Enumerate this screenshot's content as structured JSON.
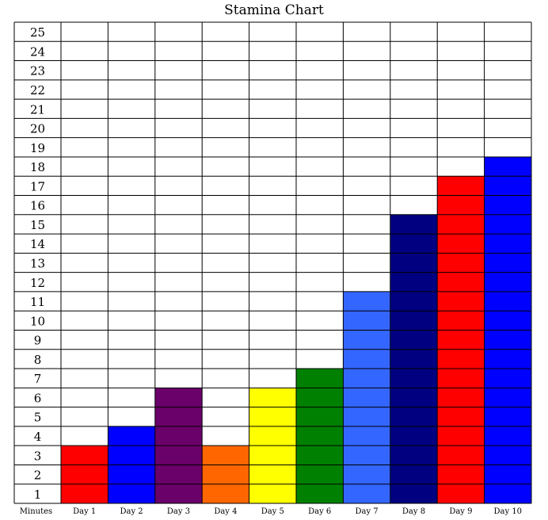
{
  "chart_data": {
    "type": "bar",
    "title": "Stamina Chart",
    "xlabel": "Minutes",
    "ylabel": "",
    "categories": [
      "Day 1",
      "Day 2",
      "Day 3",
      "Day 4",
      "Day 5",
      "Day 6",
      "Day 7",
      "Day 8",
      "Day 9",
      "Day 10"
    ],
    "values": [
      3,
      4,
      6,
      3,
      6,
      7,
      11,
      15,
      17,
      18
    ],
    "colors": [
      "#ff0000",
      "#0000ff",
      "#6a0069",
      "#ff6600",
      "#ffff00",
      "#008000",
      "#3366ff",
      "#000080",
      "#ff0000",
      "#0000ff"
    ],
    "yticks": [
      1,
      2,
      3,
      4,
      5,
      6,
      7,
      8,
      9,
      10,
      11,
      12,
      13,
      14,
      15,
      16,
      17,
      18,
      19,
      20,
      21,
      22,
      23,
      24,
      25
    ],
    "ylim": [
      0,
      25
    ],
    "grid": true,
    "legend": "none"
  }
}
